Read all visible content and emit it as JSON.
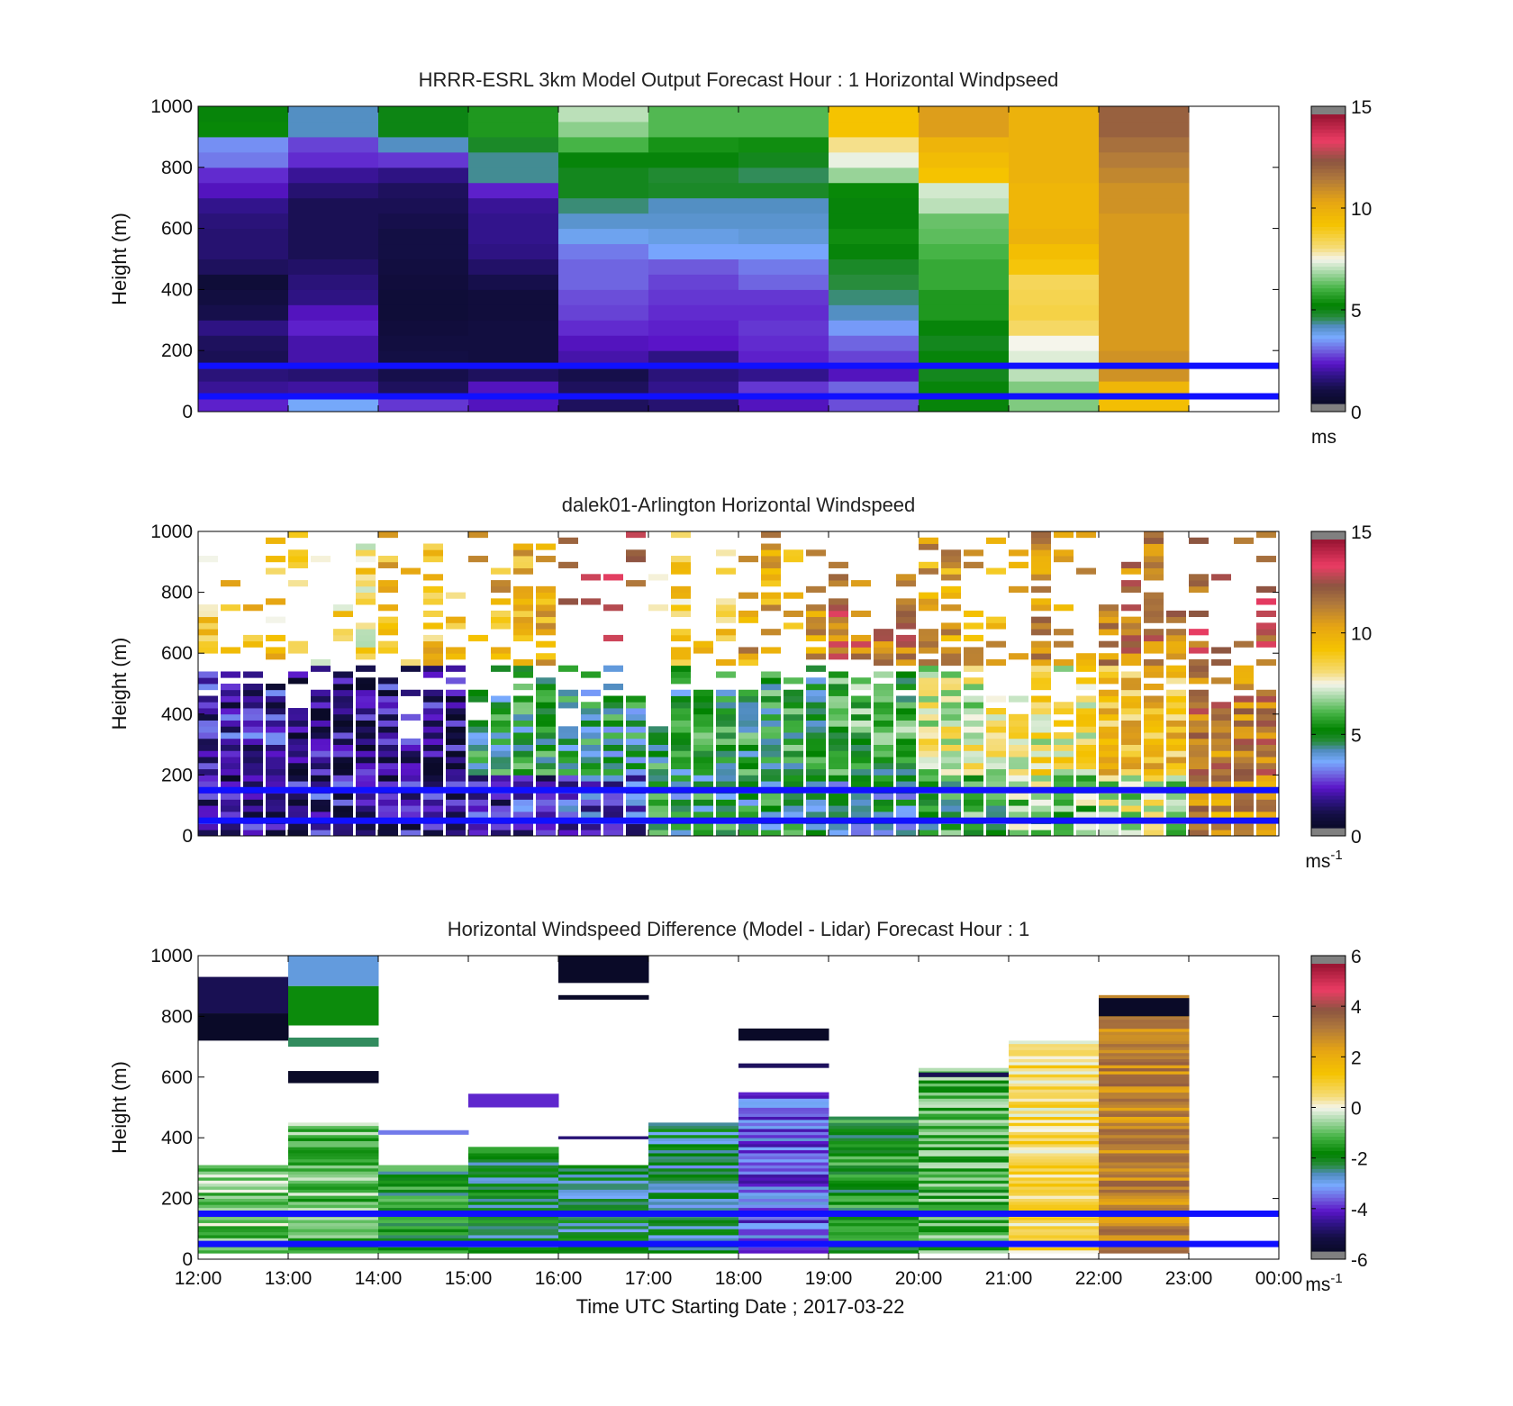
{
  "figure": {
    "xlabel": "Time UTC  Starting Date ; 2017-03-22"
  },
  "chart_data": [
    {
      "type": "heatmap",
      "title": "HRRR-ESRL 3km Model Output   Forecast Hour : 1 Horizontal Windpseed",
      "ylabel": "Height (m)",
      "x_tick_labels": [
        "12:00",
        "13:00",
        "14:00",
        "15:00",
        "16:00",
        "17:00",
        "18:00",
        "19:00",
        "20:00",
        "21:00",
        "22:00",
        "23:00",
        "00:00"
      ],
      "y_ticks": [
        0,
        200,
        400,
        600,
        800,
        1000
      ],
      "ylim": [
        0,
        1000
      ],
      "colorbar": {
        "ticks": [
          0,
          5,
          10,
          15
        ],
        "range": [
          0,
          15
        ],
        "unit": "ms",
        "unit_sup": ""
      },
      "reference_lines_m": [
        50,
        150
      ],
      "x_hours": [
        12,
        13,
        14,
        15,
        16,
        17,
        18,
        19,
        20,
        21,
        22,
        23
      ],
      "heights_m": [
        25,
        75,
        125,
        175,
        225,
        275,
        325,
        375,
        425,
        475,
        525,
        575,
        625,
        675,
        725,
        775,
        825,
        875,
        925,
        975
      ],
      "windspeed_ms": [
        [
          2.2,
          3.5,
          2.4,
          2.0,
          1.0,
          1.2,
          2.0,
          2.6,
          5.0,
          6.5,
          9.5,
          null
        ],
        [
          1.6,
          1.7,
          1.0,
          2.0,
          1.0,
          1.5,
          2.4,
          2.8,
          5.0,
          6.5,
          9.8,
          null
        ],
        [
          1.3,
          1.2,
          0.8,
          1.0,
          0.8,
          1.3,
          1.5,
          2.0,
          4.8,
          7.0,
          11.0,
          null
        ],
        [
          0.9,
          1.8,
          0.7,
          0.6,
          1.8,
          1.4,
          2.2,
          2.5,
          5.0,
          7.3,
          11.0,
          null
        ],
        [
          1.0,
          1.8,
          0.6,
          0.6,
          2.0,
          2.1,
          2.3,
          2.8,
          4.8,
          7.5,
          10.8,
          null
        ],
        [
          1.4,
          2.2,
          0.5,
          0.6,
          2.3,
          2.2,
          2.4,
          3.3,
          5.0,
          8.3,
          10.8,
          null
        ],
        [
          0.8,
          2.0,
          0.4,
          0.5,
          2.5,
          2.3,
          2.3,
          4.0,
          5.5,
          8.6,
          10.8,
          null
        ],
        [
          0.6,
          1.4,
          0.4,
          0.5,
          2.6,
          2.4,
          2.4,
          4.3,
          5.5,
          8.5,
          10.8,
          null
        ],
        [
          0.4,
          1.3,
          0.5,
          0.8,
          2.8,
          2.5,
          2.8,
          4.5,
          5.8,
          8.4,
          10.8,
          null
        ],
        [
          1.0,
          1.1,
          0.6,
          1.1,
          2.8,
          2.7,
          3.0,
          4.7,
          5.8,
          9.2,
          10.8,
          null
        ],
        [
          1.2,
          0.9,
          0.7,
          1.4,
          3.0,
          3.4,
          3.4,
          5.0,
          6.0,
          9.5,
          10.8,
          null
        ],
        [
          1.2,
          0.9,
          0.7,
          1.5,
          3.6,
          3.7,
          3.8,
          5.3,
          6.2,
          10.0,
          10.8,
          null
        ],
        [
          1.3,
          0.9,
          0.8,
          1.5,
          3.9,
          3.9,
          3.9,
          5.0,
          6.3,
          9.8,
          10.8,
          null
        ],
        [
          1.5,
          0.9,
          0.9,
          1.6,
          4.3,
          4.0,
          4.0,
          5.0,
          7.0,
          9.8,
          11.0,
          null
        ],
        [
          2.0,
          1.2,
          1.0,
          2.2,
          4.8,
          4.7,
          4.7,
          5.2,
          7.2,
          9.8,
          11.0,
          null
        ],
        [
          2.3,
          1.6,
          1.4,
          4.2,
          4.8,
          4.6,
          4.4,
          6.7,
          9.3,
          10.0,
          11.3,
          null
        ],
        [
          3.0,
          2.3,
          2.4,
          4.2,
          5.0,
          5.0,
          4.8,
          7.4,
          9.6,
          10.0,
          11.6,
          null
        ],
        [
          3.2,
          2.5,
          4.0,
          4.7,
          6.0,
          5.4,
          5.3,
          8.0,
          9.9,
          10.0,
          11.9,
          null
        ],
        [
          5.2,
          4.0,
          4.9,
          5.5,
          6.6,
          6.1,
          6.1,
          9.3,
          10.7,
          10.0,
          12.3,
          null
        ],
        [
          5.0,
          4.0,
          4.9,
          5.5,
          7.0,
          6.1,
          6.1,
          9.3,
          10.7,
          10.0,
          12.3,
          null
        ]
      ]
    },
    {
      "type": "heatmap",
      "title": "dalek01-Arlington  Horizontal Windspeed",
      "ylabel": "Height (m)",
      "y_ticks": [
        0,
        200,
        400,
        600,
        800,
        1000
      ],
      "ylim": [
        0,
        1000
      ],
      "colorbar": {
        "ticks": [
          0,
          5,
          10,
          15
        ],
        "range": [
          0,
          15
        ],
        "unit": "ms",
        "unit_sup": "-1"
      },
      "reference_lines_m": [
        50,
        150
      ],
      "time_start_hour": 12,
      "time_end_hour": 24,
      "time_step_min": 15,
      "height_bin_m": 20,
      "windspeed_ms_profiles_by_hour": [
        {
          "hour": 12,
          "low_level_ms": 1.5,
          "mid_level_ms": 1.8,
          "upper_level_ms": 9.0
        },
        {
          "hour": 13,
          "low_level_ms": 1.6,
          "mid_level_ms": 1.2,
          "upper_level_ms": 8.5
        },
        {
          "hour": 14,
          "low_level_ms": 1.4,
          "mid_level_ms": 1.4,
          "upper_level_ms": 9.5
        },
        {
          "hour": 15,
          "low_level_ms": 2.0,
          "mid_level_ms": 5.0,
          "upper_level_ms": 10.0
        },
        {
          "hour": 16,
          "low_level_ms": 2.5,
          "mid_level_ms": 4.8,
          "upper_level_ms": 12.5
        },
        {
          "hour": 17,
          "low_level_ms": 4.8,
          "mid_level_ms": 5.0,
          "upper_level_ms": 9.0
        },
        {
          "hour": 18,
          "low_level_ms": 4.8,
          "mid_level_ms": 5.2,
          "upper_level_ms": 10.5
        },
        {
          "hour": 19,
          "low_level_ms": 4.2,
          "mid_level_ms": 5.6,
          "upper_level_ms": 12.0
        },
        {
          "hour": 20,
          "low_level_ms": 5.6,
          "mid_level_ms": 7.5,
          "upper_level_ms": 10.5
        },
        {
          "hour": 21,
          "low_level_ms": 6.5,
          "mid_level_ms": 8.0,
          "upper_level_ms": 11.0
        },
        {
          "hour": 22,
          "low_level_ms": 7.2,
          "mid_level_ms": 9.5,
          "upper_level_ms": 11.5
        },
        {
          "hour": 23,
          "low_level_ms": 11.0,
          "mid_level_ms": 11.5,
          "upper_level_ms": 12.5
        }
      ]
    },
    {
      "type": "heatmap",
      "title": "Horizontal Windspeed Difference (Model - Lidar) Forecast Hour : 1",
      "ylabel": "Height (m)",
      "x_tick_labels": [
        "12:00",
        "13:00",
        "14:00",
        "15:00",
        "16:00",
        "17:00",
        "18:00",
        "19:00",
        "20:00",
        "21:00",
        "22:00",
        "23:00",
        "00:00"
      ],
      "y_ticks": [
        0,
        200,
        400,
        600,
        800,
        1000
      ],
      "ylim": [
        0,
        1000
      ],
      "colorbar": {
        "ticks": [
          -6,
          -4,
          -2,
          0,
          2,
          4,
          6
        ],
        "range": [
          -6,
          6
        ],
        "unit": "ms",
        "unit_sup": "-1"
      },
      "reference_lines_m": [
        50,
        150
      ],
      "hourly_difference_blocks": [
        {
          "hour": 12,
          "top_m": 310,
          "diff_ms": -0.8,
          "extra_bands": [
            {
              "from": 720,
              "to": 810,
              "diff_ms": -6.0
            },
            {
              "from": 810,
              "to": 930,
              "diff_ms": -5.3
            }
          ]
        },
        {
          "hour": 13,
          "top_m": 450,
          "diff_ms": -1.0,
          "extra_bands": [
            {
              "from": 580,
              "to": 620,
              "diff_ms": -6.0
            },
            {
              "from": 700,
              "to": 730,
              "diff_ms": -2.5
            },
            {
              "from": 770,
              "to": 900,
              "diff_ms": -1.8
            },
            {
              "from": 900,
              "to": 1000,
              "diff_ms": -3.0
            }
          ]
        },
        {
          "hour": 14,
          "top_m": 310,
          "diff_ms": -1.8,
          "extra_bands": [
            {
              "from": 410,
              "to": 425,
              "diff_ms": -3.6
            }
          ]
        },
        {
          "hour": 15,
          "top_m": 370,
          "diff_ms": -2.2,
          "extra_bands": [
            {
              "from": 500,
              "to": 545,
              "diff_ms": -4.2
            }
          ]
        },
        {
          "hour": 16,
          "top_m": 310,
          "diff_ms": -2.5,
          "extra_bands": [
            {
              "from": 395,
              "to": 405,
              "diff_ms": -5.0
            },
            {
              "from": 855,
              "to": 870,
              "diff_ms": -6.0
            },
            {
              "from": 910,
              "to": 1000,
              "diff_ms": -6.0
            }
          ]
        },
        {
          "hour": 17,
          "top_m": 450,
          "diff_ms": -2.6,
          "extra_bands": []
        },
        {
          "hour": 18,
          "top_m": 550,
          "diff_ms": -3.8,
          "extra_bands": [
            {
              "from": 630,
              "to": 645,
              "diff_ms": -5.2
            },
            {
              "from": 720,
              "to": 760,
              "diff_ms": -6.0
            }
          ]
        },
        {
          "hour": 19,
          "top_m": 470,
          "diff_ms": -1.8,
          "extra_bands": []
        },
        {
          "hour": 20,
          "top_m": 630,
          "diff_ms": -1.2,
          "extra_bands": [
            {
              "from": 600,
              "to": 615,
              "diff_ms": -5.3
            }
          ]
        },
        {
          "hour": 21,
          "top_m": 720,
          "diff_ms": 0.6,
          "extra_bands": []
        },
        {
          "hour": 22,
          "top_m": 870,
          "diff_ms": 3.0,
          "extra_bands": [
            {
              "from": 800,
              "to": 860,
              "diff_ms": -6.0
            }
          ]
        }
      ]
    }
  ]
}
